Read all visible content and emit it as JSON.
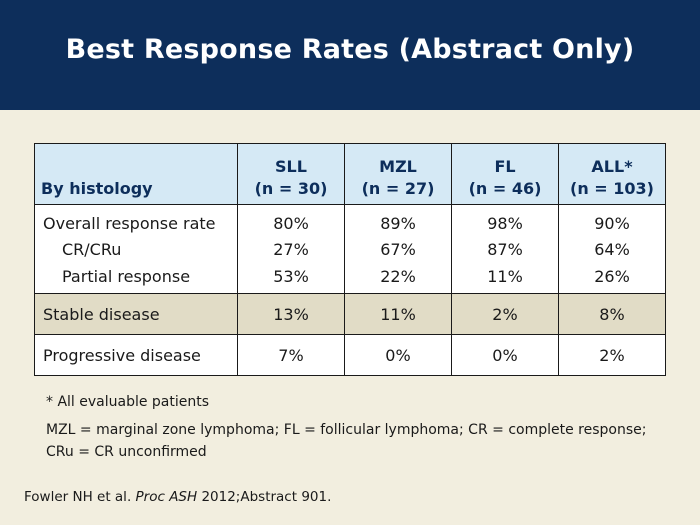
{
  "title": "Best Response Rates (Abstract Only)",
  "table": {
    "header": {
      "row_label": "By histology",
      "columns": [
        {
          "name": "SLL",
          "n": "(n = 30)"
        },
        {
          "name": "MZL",
          "n": "(n = 27)"
        },
        {
          "name": "FL",
          "n": "(n = 46)"
        },
        {
          "name": "ALL*",
          "n": "(n = 103)"
        }
      ]
    },
    "rows": [
      {
        "label": "Overall response rate",
        "values": [
          "80%",
          "89%",
          "98%",
          "90%"
        ]
      },
      {
        "label": "CR/CRu",
        "values": [
          "27%",
          "67%",
          "87%",
          "64%"
        ]
      },
      {
        "label": "Partial response",
        "values": [
          "53%",
          "22%",
          "11%",
          "26%"
        ]
      },
      {
        "label": "Stable disease",
        "values": [
          "13%",
          "11%",
          "2%",
          "8%"
        ]
      },
      {
        "label": "Progressive disease",
        "values": [
          "7%",
          "0%",
          "0%",
          "2%"
        ]
      }
    ]
  },
  "footnotes": {
    "asterisk": "* All evaluable patients",
    "abbreviations": "MZL = marginal zone lymphoma; FL = follicular lymphoma; CR = complete response; CRu = CR unconfirmed"
  },
  "citation": {
    "authors": "Fowler NH et al.",
    "journal": "Proc ASH",
    "details": "2012;Abstract 901."
  },
  "colors": {
    "header_bg": "#0d2e5b",
    "page_bg": "#f2eedf",
    "table_head_bg": "#d5e9f5",
    "stable_row_bg": "#e1dcc6"
  }
}
